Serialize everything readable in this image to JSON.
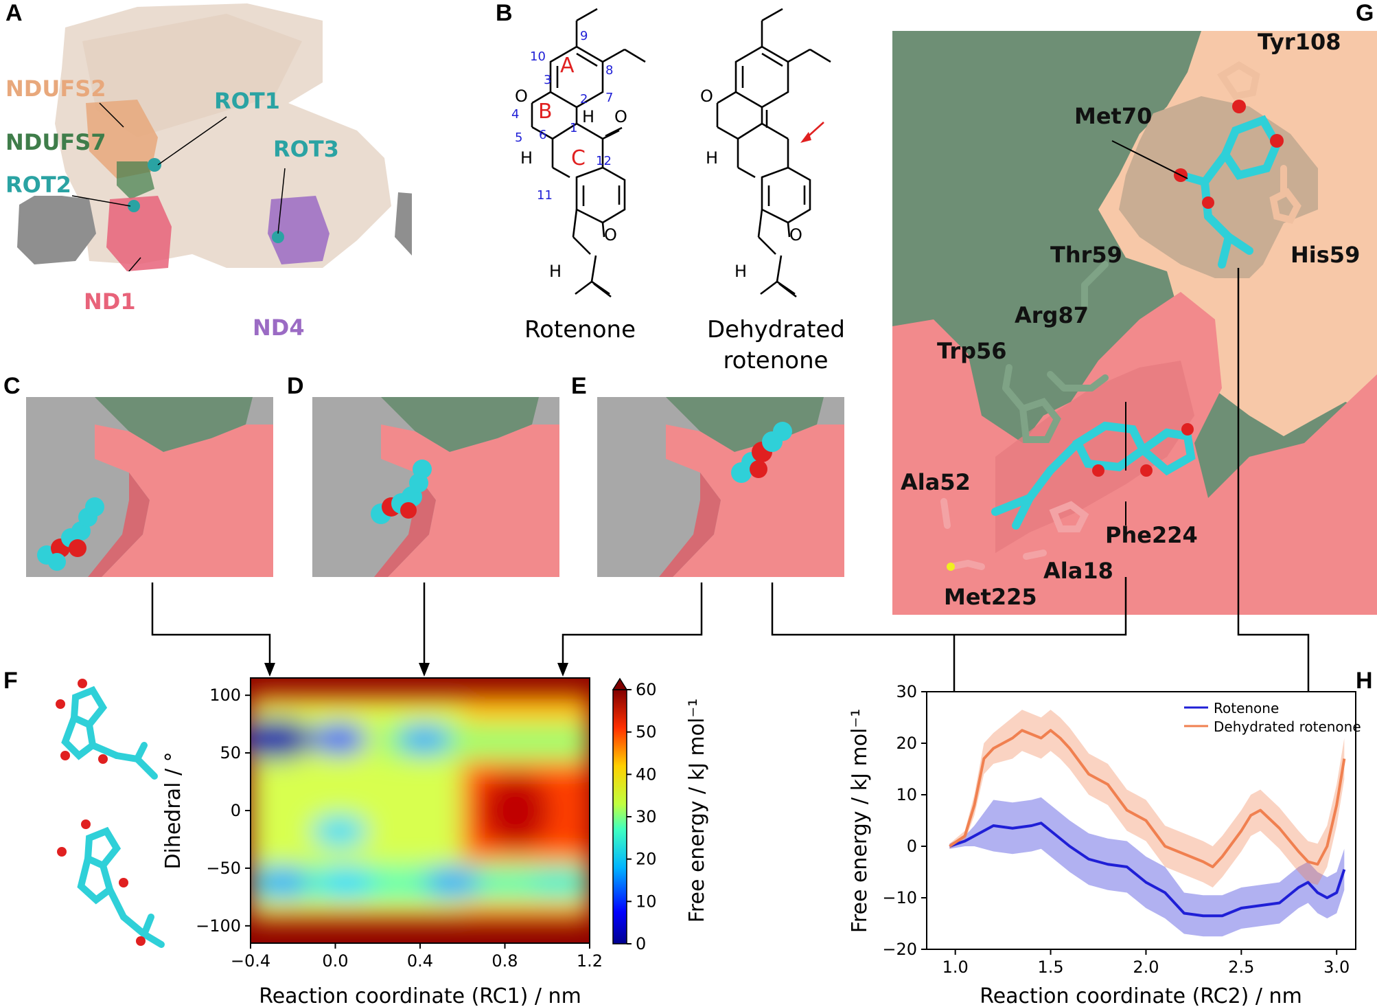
{
  "panels": {
    "A": "A",
    "B": "B",
    "C": "C",
    "D": "D",
    "E": "E",
    "F": "F",
    "G": "G",
    "H": "H"
  },
  "panelA": {
    "labels": {
      "ndufs2": "NDUFS2",
      "rot1": "ROT1",
      "ndufs7": "NDUFS7",
      "rot3": "ROT3",
      "rot2": "ROT2",
      "nd1": "ND1",
      "nd4": "ND4"
    },
    "colors": {
      "ndufs2": "#e8a87c",
      "rot": "#2aa3a3",
      "ndufs7": "#3f7d4a",
      "nd1": "#e8637a",
      "nd4": "#9b6bc4",
      "membrane": "#8c8c8c",
      "complex": "#e8d5c4"
    }
  },
  "panelB": {
    "rotenone_caption": "Rotenone",
    "dehydrated_caption_line1": "Dehydrated",
    "dehydrated_caption_line2": "rotenone",
    "ring_labels": [
      "A",
      "B",
      "C"
    ],
    "atom_numbers": [
      "9",
      "10",
      "8",
      "7",
      "3",
      "2",
      "4",
      "1",
      "5",
      "6",
      "12",
      "11"
    ],
    "hydrogen": "H",
    "oxygen": "O"
  },
  "panelG": {
    "residues": {
      "tyr108": "Tyr108",
      "met70": "Met70",
      "thr59": "Thr59",
      "his59": "His59",
      "arg87": "Arg87",
      "trp56": "Trp56",
      "ala52": "Ala52",
      "phe224": "Phe224",
      "ala18": "Ala18",
      "met225": "Met225"
    }
  },
  "colors": {
    "ligand": "#2fd0d8",
    "oxygen": "#e02020",
    "pink": "#f28a8c",
    "green": "#6e8f75",
    "peach": "#f7c8a8",
    "tan": "#d9bfa0",
    "grey": "#a8a8a8"
  },
  "chart_data": [
    {
      "type": "heatmap",
      "panel": "F",
      "xlabel": "Reaction coordinate (RC1) / nm",
      "ylabel": "Dihedral / °",
      "colorbar_label": "Free energy / kJ mol⁻¹",
      "xlim": [
        -0.4,
        1.2
      ],
      "ylim": [
        -115,
        115
      ],
      "x_ticks": [
        -0.4,
        0.0,
        0.4,
        0.8,
        1.2
      ],
      "x_tick_labels": [
        "−0.4",
        "0.0",
        "0.4",
        "0.8",
        "1.2"
      ],
      "y_ticks": [
        100,
        50,
        0,
        -50,
        -100
      ],
      "y_tick_labels": [
        "100",
        "50",
        "0",
        "−50",
        "−100"
      ],
      "colorbar_range": [
        0,
        60
      ],
      "colorbar_ticks": [
        "0",
        "10",
        "20",
        "30",
        "40",
        "50",
        "60"
      ],
      "minima": [
        {
          "x": -0.28,
          "y": 62,
          "energy": 2
        },
        {
          "x": 0.02,
          "y": 62,
          "energy": 12
        },
        {
          "x": 0.42,
          "y": 62,
          "energy": 14
        },
        {
          "x": 0.02,
          "y": -18,
          "energy": 18
        },
        {
          "x": -0.25,
          "y": -62,
          "energy": 16
        },
        {
          "x": 0.05,
          "y": -62,
          "energy": 18
        },
        {
          "x": 0.55,
          "y": -62,
          "energy": 16
        },
        {
          "x": 1.05,
          "y": -62,
          "energy": 22
        }
      ]
    },
    {
      "type": "line",
      "panel": "H",
      "xlabel": "Reaction coordinate (RC2) / nm",
      "ylabel": "Free energy / kJ mol⁻¹",
      "xlim": [
        0.85,
        3.1
      ],
      "ylim": [
        -20,
        30
      ],
      "x_ticks": [
        1.0,
        1.5,
        2.0,
        2.5,
        3.0
      ],
      "x_tick_labels": [
        "1.0",
        "1.5",
        "2.0",
        "2.5",
        "3.0"
      ],
      "y_ticks": [
        30,
        20,
        10,
        0,
        -10,
        -20
      ],
      "y_tick_labels": [
        "30",
        "20",
        "10",
        "0",
        "−10",
        "−20"
      ],
      "legend_position": "top-right",
      "series": [
        {
          "name": "Rotenone",
          "color": "#1f1fd6",
          "x": [
            0.97,
            1.05,
            1.1,
            1.2,
            1.3,
            1.4,
            1.45,
            1.5,
            1.6,
            1.7,
            1.8,
            1.9,
            2.0,
            2.1,
            2.2,
            2.3,
            2.4,
            2.5,
            2.6,
            2.7,
            2.8,
            2.85,
            2.9,
            2.95,
            3.0,
            3.04
          ],
          "y": [
            0,
            1,
            2,
            4,
            3.5,
            4,
            4.5,
            3,
            0,
            -2.5,
            -3.5,
            -4,
            -7,
            -9,
            -13,
            -13.5,
            -13.5,
            -12,
            -11.5,
            -11,
            -8,
            -7,
            -9,
            -10,
            -9,
            -4.5
          ],
          "err": [
            0.5,
            1,
            2,
            5,
            5,
            5,
            5,
            5,
            5,
            5,
            5,
            5,
            5,
            5,
            4,
            4,
            4,
            4,
            4,
            4,
            4,
            4,
            4,
            4,
            4,
            4
          ]
        },
        {
          "name": "Dehydrated rotenone",
          "color": "#f08050",
          "x": [
            0.97,
            1.05,
            1.1,
            1.15,
            1.2,
            1.3,
            1.35,
            1.45,
            1.5,
            1.55,
            1.6,
            1.7,
            1.8,
            1.9,
            2.0,
            2.1,
            2.2,
            2.3,
            2.35,
            2.4,
            2.5,
            2.55,
            2.6,
            2.7,
            2.8,
            2.85,
            2.9,
            2.95,
            3.0,
            3.04
          ],
          "y": [
            0,
            2,
            8,
            17,
            19,
            21,
            22.5,
            21,
            22.5,
            21,
            19,
            14,
            12,
            7,
            5,
            0,
            -1.5,
            -3,
            -4,
            -2,
            3,
            6,
            7,
            3.5,
            -1,
            -3,
            -3.5,
            0,
            8,
            17
          ],
          "err": [
            0.5,
            1,
            2,
            3,
            3,
            4,
            4,
            4,
            4,
            4,
            4,
            4,
            4,
            4,
            4,
            4,
            4,
            4,
            4,
            4,
            4,
            4,
            4,
            4,
            4,
            4,
            4,
            4,
            4,
            4
          ]
        }
      ]
    }
  ]
}
